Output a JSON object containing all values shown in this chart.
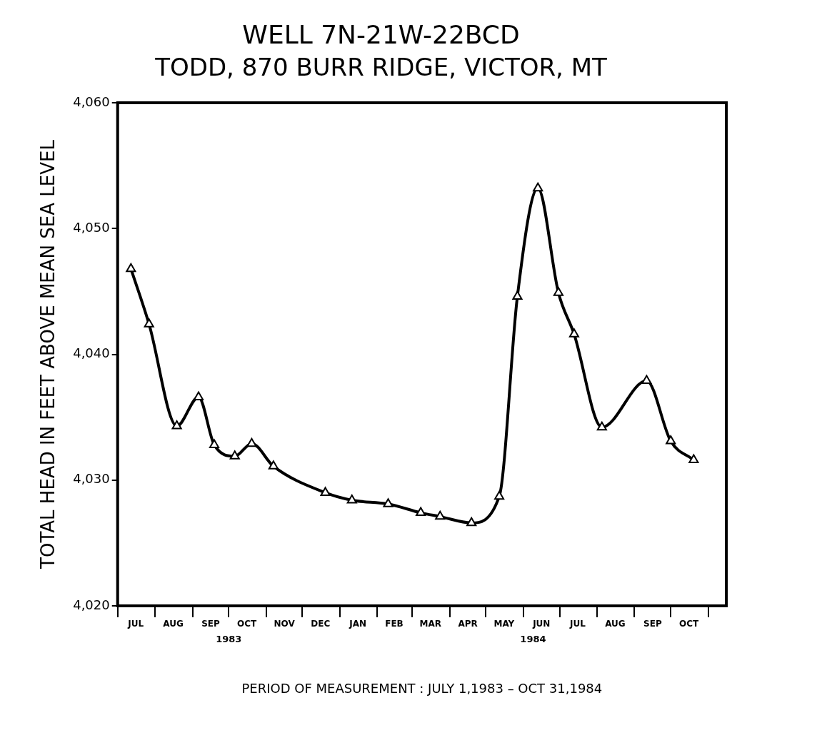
{
  "chart_data": {
    "type": "line",
    "title": "WELL 7N-21W-22BCD",
    "subtitle": "TODD, 870 BURR RIDGE, VICTOR, MT",
    "xlabel": "PERIOD OF MEASUREMENT : JULY 1,1983 – OCT 31,1984",
    "ylabel": "TOTAL HEAD IN FEET ABOVE MEAN SEA LEVEL",
    "x": [
      "1983-07-12",
      "1983-07-27",
      "1983-08-19",
      "1983-09-06",
      "1983-09-19",
      "1983-10-06",
      "1983-10-20",
      "1983-11-07",
      "1983-12-20",
      "1984-01-11",
      "1984-02-10",
      "1984-03-08",
      "1984-03-24",
      "1984-04-19",
      "1984-05-12",
      "1984-05-27",
      "1984-06-13",
      "1984-06-30",
      "1984-07-13",
      "1984-08-05",
      "1984-09-11",
      "1984-10-01",
      "1984-10-20"
    ],
    "series": [
      {
        "color": "#000000",
        "values": [
          4046.8,
          4042.4,
          4034.3,
          4036.6,
          4032.8,
          4031.9,
          4032.9,
          4031.1,
          4029.0,
          4028.4,
          4028.1,
          4027.4,
          4027.1,
          4026.6,
          4028.7,
          4044.6,
          4053.2,
          4044.9,
          4041.6,
          4034.2,
          4037.9,
          4033.1,
          4031.6
        ]
      }
    ],
    "xlim": [
      "1983-07-01",
      "1984-11-16"
    ],
    "xticks": [
      {
        "value": "1983-07-01",
        "label": null
      },
      {
        "value": "1983-07-16",
        "label": "JUL"
      },
      {
        "value": "1983-08-01",
        "label": null
      },
      {
        "value": "1983-08-16",
        "label": "AUG"
      },
      {
        "value": "1983-09-01",
        "label": null
      },
      {
        "value": "1983-09-16",
        "label": "SEP"
      },
      {
        "value": "1983-10-01",
        "label": null
      },
      {
        "value": "1983-10-16",
        "label": "OCT"
      },
      {
        "value": "1983-11-01",
        "label": null
      },
      {
        "value": "1983-11-16",
        "label": "NOV"
      },
      {
        "value": "1983-12-01",
        "label": null
      },
      {
        "value": "1983-12-16",
        "label": "DEC"
      },
      {
        "value": "1984-01-01",
        "label": null
      },
      {
        "value": "1984-01-16",
        "label": "JAN"
      },
      {
        "value": "1984-02-01",
        "label": null
      },
      {
        "value": "1984-02-15",
        "label": "FEB"
      },
      {
        "value": "1984-03-01",
        "label": null
      },
      {
        "value": "1984-03-16",
        "label": "MAR"
      },
      {
        "value": "1984-04-01",
        "label": null
      },
      {
        "value": "1984-04-16",
        "label": "APR"
      },
      {
        "value": "1984-05-01",
        "label": null
      },
      {
        "value": "1984-05-16",
        "label": "MAY"
      },
      {
        "value": "1984-06-01",
        "label": null
      },
      {
        "value": "1984-06-16",
        "label": "JUN"
      },
      {
        "value": "1984-07-01",
        "label": null
      },
      {
        "value": "1984-07-16",
        "label": "JUL"
      },
      {
        "value": "1984-08-01",
        "label": null
      },
      {
        "value": "1984-08-16",
        "label": "AUG"
      },
      {
        "value": "1984-09-01",
        "label": null
      },
      {
        "value": "1984-09-16",
        "label": "SEP"
      },
      {
        "value": "1984-10-01",
        "label": null
      },
      {
        "value": "1984-10-16",
        "label": "OCT"
      },
      {
        "value": "1984-11-01",
        "label": null
      }
    ],
    "ylim": [
      4020,
      4060
    ],
    "yticks": [
      {
        "value": 4020,
        "label": "4,020"
      },
      {
        "value": 4030,
        "label": "4,030"
      },
      {
        "value": 4040,
        "label": "4,040"
      },
      {
        "value": 4050,
        "label": "4,050"
      },
      {
        "value": 4060,
        "label": "4,060"
      }
    ],
    "annotations": [
      "1983",
      "1984"
    ],
    "marker": "triangle",
    "line_style": "solid",
    "grid": false,
    "legend": false
  }
}
